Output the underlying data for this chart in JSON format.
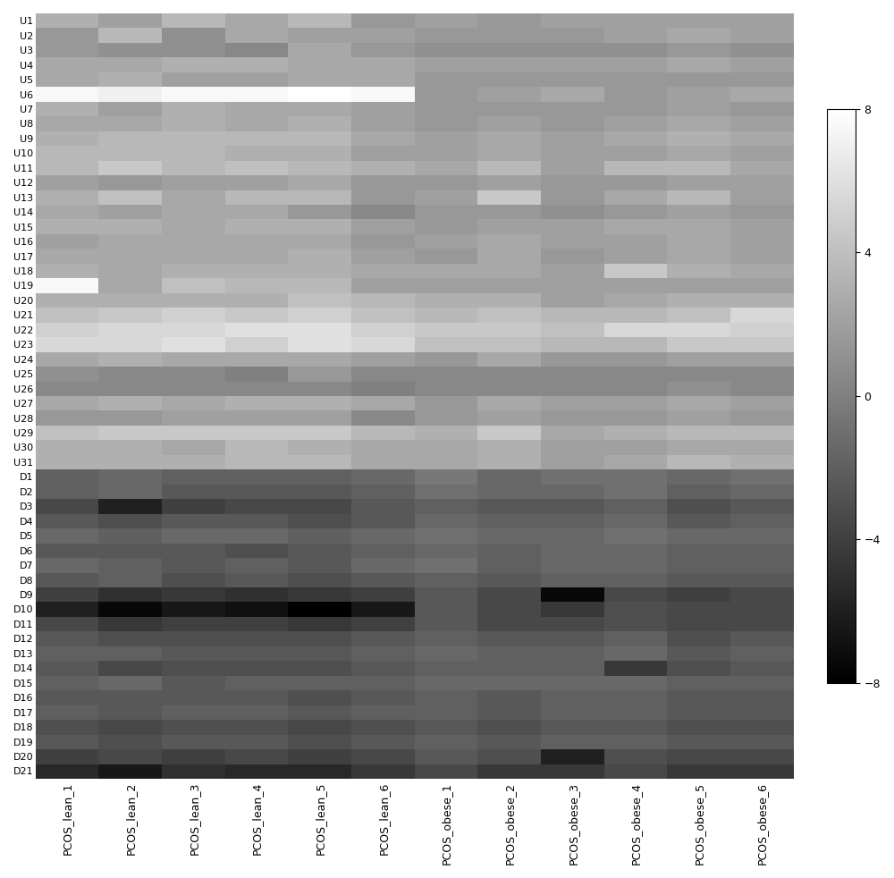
{
  "row_labels": [
    "U1",
    "U2",
    "U3",
    "U4",
    "U5",
    "U6",
    "U7",
    "U8",
    "U9",
    "U10",
    "U11",
    "U12",
    "U13",
    "U14",
    "U15",
    "U16",
    "U17",
    "U18",
    "U19",
    "U20",
    "U21",
    "U22",
    "U23",
    "U24",
    "U25",
    "U26",
    "U27",
    "U28",
    "U29",
    "U30",
    "U31",
    "D1",
    "D2",
    "D3",
    "D4",
    "D5",
    "D6",
    "D7",
    "D8",
    "D9",
    "D10",
    "D11",
    "D12",
    "D13",
    "D14",
    "D15",
    "D16",
    "D17",
    "D18",
    "D19",
    "D20",
    "D21"
  ],
  "col_labels": [
    "PCOS_lean_1",
    "PCOS_lean_2",
    "PCOS_lean_3",
    "PCOS_lean_4",
    "PCOS_lean_5",
    "PCOS_lean_6",
    "PCOS_obese_1",
    "PCOS_obese_2",
    "PCOS_obese_3",
    "PCOS_obese_4",
    "PCOS_obese_5",
    "PCOS_obese_6"
  ],
  "vmin": -8,
  "vmax": 8,
  "colorbar_ticks": [
    8,
    4,
    0,
    -4,
    -8
  ],
  "data": [
    [
      3.0,
      2.0,
      3.5,
      2.5,
      3.5,
      1.5,
      2.0,
      1.5,
      2.0,
      2.0,
      2.0,
      2.0
    ],
    [
      1.5,
      3.5,
      1.0,
      2.5,
      2.0,
      2.0,
      1.5,
      1.5,
      1.5,
      2.0,
      2.5,
      2.0
    ],
    [
      1.5,
      1.0,
      1.0,
      0.5,
      2.5,
      1.5,
      1.0,
      1.0,
      1.0,
      1.0,
      1.5,
      1.0
    ],
    [
      2.5,
      2.5,
      3.0,
      3.0,
      2.5,
      2.5,
      2.0,
      2.0,
      2.0,
      2.0,
      2.5,
      2.0
    ],
    [
      2.5,
      3.0,
      2.0,
      2.0,
      2.5,
      2.5,
      1.5,
      1.5,
      1.5,
      1.5,
      1.5,
      1.5
    ],
    [
      7.5,
      7.0,
      7.5,
      7.5,
      8.0,
      7.5,
      1.5,
      2.0,
      2.5,
      1.5,
      2.0,
      2.5
    ],
    [
      3.0,
      2.0,
      3.0,
      2.5,
      2.5,
      2.0,
      1.5,
      1.5,
      1.5,
      1.5,
      2.0,
      1.5
    ],
    [
      2.5,
      2.5,
      3.0,
      2.5,
      3.0,
      2.0,
      1.5,
      2.0,
      1.5,
      2.0,
      2.5,
      2.0
    ],
    [
      3.0,
      3.5,
      3.5,
      3.5,
      3.5,
      2.5,
      2.0,
      2.5,
      2.0,
      2.5,
      3.0,
      2.5
    ],
    [
      3.5,
      3.5,
      3.5,
      3.0,
      3.0,
      2.0,
      2.0,
      2.5,
      2.0,
      2.0,
      2.5,
      2.0
    ],
    [
      3.5,
      4.5,
      3.5,
      4.0,
      3.5,
      3.0,
      2.5,
      3.5,
      2.0,
      3.5,
      3.5,
      2.5
    ],
    [
      2.0,
      1.5,
      2.0,
      2.0,
      2.5,
      1.5,
      1.5,
      2.0,
      1.5,
      1.5,
      2.0,
      2.0
    ],
    [
      3.0,
      4.0,
      2.5,
      3.5,
      3.5,
      1.5,
      2.0,
      4.5,
      1.5,
      2.5,
      3.5,
      2.0
    ],
    [
      2.5,
      2.0,
      2.5,
      2.5,
      1.5,
      0.5,
      1.5,
      1.5,
      1.0,
      1.5,
      2.0,
      1.5
    ],
    [
      3.0,
      3.0,
      2.5,
      3.0,
      3.0,
      2.0,
      1.5,
      2.0,
      2.0,
      2.5,
      2.5,
      2.0
    ],
    [
      2.0,
      2.5,
      2.5,
      2.5,
      2.5,
      1.5,
      2.0,
      2.5,
      2.0,
      2.0,
      2.5,
      2.0
    ],
    [
      2.5,
      2.5,
      2.5,
      2.5,
      3.0,
      2.0,
      1.5,
      2.5,
      1.5,
      2.0,
      2.5,
      2.0
    ],
    [
      3.0,
      2.5,
      3.0,
      3.0,
      3.0,
      2.5,
      2.5,
      2.5,
      2.0,
      4.5,
      3.0,
      2.5
    ],
    [
      7.5,
      2.5,
      4.0,
      3.5,
      3.5,
      2.0,
      2.0,
      2.0,
      2.0,
      2.0,
      2.0,
      2.0
    ],
    [
      3.0,
      3.0,
      3.0,
      3.0,
      4.0,
      3.5,
      3.0,
      3.0,
      2.0,
      2.5,
      3.0,
      3.0
    ],
    [
      4.0,
      4.5,
      5.0,
      4.5,
      5.0,
      4.0,
      3.5,
      4.0,
      3.5,
      3.5,
      4.0,
      5.5
    ],
    [
      5.0,
      5.5,
      5.5,
      6.0,
      6.0,
      5.0,
      4.5,
      4.5,
      4.0,
      5.5,
      5.5,
      5.0
    ],
    [
      5.5,
      5.5,
      6.0,
      5.0,
      6.0,
      5.5,
      4.0,
      4.0,
      3.5,
      3.5,
      4.5,
      4.5
    ],
    [
      2.5,
      3.0,
      2.5,
      2.5,
      2.5,
      2.0,
      1.5,
      2.5,
      1.5,
      1.5,
      2.0,
      2.0
    ],
    [
      1.0,
      0.5,
      0.5,
      0.0,
      1.5,
      0.5,
      0.5,
      0.5,
      0.5,
      0.5,
      0.5,
      0.5
    ],
    [
      0.5,
      0.5,
      0.5,
      0.5,
      0.5,
      0.0,
      0.5,
      0.5,
      0.5,
      0.5,
      1.0,
      0.5
    ],
    [
      2.5,
      3.0,
      2.5,
      3.0,
      3.0,
      2.5,
      1.5,
      2.5,
      2.0,
      2.0,
      2.5,
      2.0
    ],
    [
      1.5,
      1.5,
      2.0,
      2.0,
      2.0,
      0.5,
      1.5,
      2.0,
      1.5,
      1.5,
      2.0,
      1.5
    ],
    [
      4.0,
      4.5,
      4.5,
      4.5,
      4.5,
      3.5,
      3.0,
      4.5,
      2.5,
      3.0,
      3.5,
      3.5
    ],
    [
      3.0,
      3.0,
      2.5,
      3.5,
      3.0,
      2.5,
      2.5,
      3.0,
      2.0,
      2.0,
      2.5,
      2.5
    ],
    [
      3.0,
      3.0,
      3.0,
      3.5,
      3.5,
      2.5,
      2.5,
      3.0,
      2.0,
      2.5,
      3.5,
      3.0
    ],
    [
      -2.0,
      -1.5,
      -2.0,
      -2.0,
      -2.0,
      -1.5,
      -0.5,
      -1.5,
      -1.0,
      -1.0,
      -1.5,
      -1.0
    ],
    [
      -2.0,
      -1.5,
      -2.5,
      -2.5,
      -2.5,
      -2.0,
      -1.0,
      -1.5,
      -1.5,
      -1.0,
      -2.0,
      -1.5
    ],
    [
      -3.5,
      -6.0,
      -4.0,
      -3.5,
      -3.5,
      -2.5,
      -2.0,
      -2.5,
      -2.5,
      -2.0,
      -3.0,
      -2.5
    ],
    [
      -2.5,
      -3.0,
      -2.5,
      -2.5,
      -3.0,
      -2.5,
      -1.5,
      -2.0,
      -2.0,
      -1.5,
      -2.5,
      -2.0
    ],
    [
      -1.5,
      -2.0,
      -1.5,
      -1.5,
      -2.0,
      -1.5,
      -1.0,
      -1.5,
      -1.5,
      -1.0,
      -1.5,
      -1.5
    ],
    [
      -2.5,
      -2.5,
      -2.5,
      -3.0,
      -2.5,
      -2.0,
      -1.5,
      -2.0,
      -1.5,
      -1.5,
      -2.0,
      -2.0
    ],
    [
      -1.5,
      -2.0,
      -2.5,
      -2.0,
      -2.5,
      -1.5,
      -1.0,
      -2.0,
      -1.5,
      -1.5,
      -2.0,
      -2.0
    ],
    [
      -2.5,
      -2.0,
      -3.0,
      -2.5,
      -3.0,
      -2.5,
      -2.0,
      -2.5,
      -2.0,
      -2.0,
      -2.5,
      -2.5
    ],
    [
      -4.0,
      -5.0,
      -4.5,
      -5.0,
      -4.5,
      -4.0,
      -2.5,
      -3.5,
      -7.5,
      -3.5,
      -4.0,
      -3.5
    ],
    [
      -6.0,
      -7.5,
      -6.5,
      -7.0,
      -8.0,
      -6.5,
      -2.5,
      -3.5,
      -4.5,
      -3.0,
      -3.5,
      -3.5
    ],
    [
      -3.5,
      -4.5,
      -4.0,
      -4.0,
      -4.5,
      -4.0,
      -2.5,
      -3.5,
      -3.5,
      -3.0,
      -3.5,
      -3.5
    ],
    [
      -2.5,
      -3.0,
      -3.0,
      -3.0,
      -3.0,
      -2.5,
      -2.0,
      -2.5,
      -2.5,
      -2.0,
      -3.0,
      -2.5
    ],
    [
      -2.0,
      -2.0,
      -2.5,
      -2.5,
      -2.5,
      -2.0,
      -1.5,
      -2.0,
      -2.0,
      -1.5,
      -2.5,
      -2.0
    ],
    [
      -2.5,
      -3.5,
      -3.0,
      -3.0,
      -3.0,
      -2.5,
      -2.0,
      -2.0,
      -2.0,
      -4.5,
      -3.0,
      -2.5
    ],
    [
      -2.0,
      -1.5,
      -2.5,
      -2.0,
      -2.0,
      -2.0,
      -1.5,
      -1.5,
      -1.5,
      -1.5,
      -2.0,
      -2.0
    ],
    [
      -2.5,
      -2.5,
      -2.5,
      -2.5,
      -3.0,
      -2.5,
      -2.0,
      -2.5,
      -2.0,
      -2.0,
      -2.5,
      -2.5
    ],
    [
      -2.0,
      -2.5,
      -2.0,
      -2.0,
      -2.5,
      -2.0,
      -2.0,
      -2.5,
      -2.0,
      -2.0,
      -2.5,
      -2.5
    ],
    [
      -3.0,
      -3.5,
      -3.0,
      -3.0,
      -3.5,
      -3.0,
      -2.5,
      -3.0,
      -2.5,
      -2.5,
      -3.0,
      -3.0
    ],
    [
      -2.5,
      -3.0,
      -2.5,
      -2.5,
      -3.0,
      -2.5,
      -2.0,
      -2.5,
      -2.0,
      -2.0,
      -2.5,
      -2.5
    ],
    [
      -4.0,
      -3.5,
      -4.0,
      -3.5,
      -4.0,
      -3.5,
      -2.5,
      -3.0,
      -6.0,
      -3.0,
      -3.5,
      -3.5
    ],
    [
      -5.5,
      -6.5,
      -5.0,
      -5.5,
      -5.5,
      -4.5,
      -3.5,
      -4.5,
      -4.5,
      -3.5,
      -4.5,
      -4.5
    ]
  ]
}
